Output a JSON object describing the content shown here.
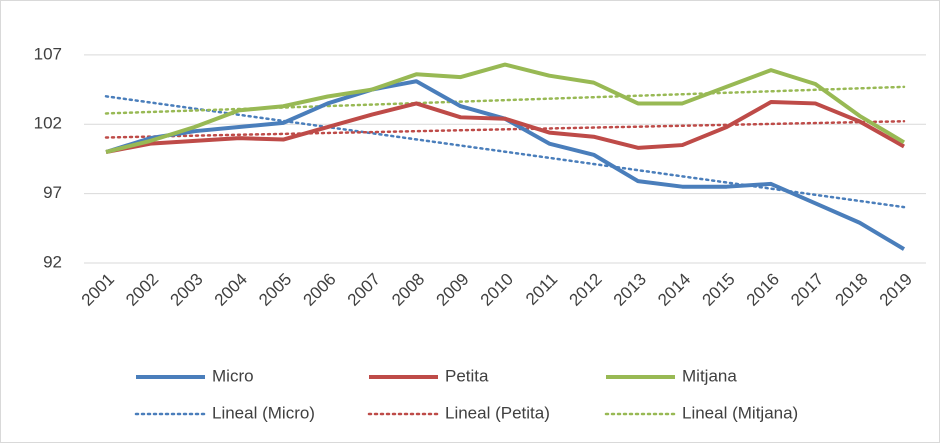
{
  "chart_data": {
    "type": "line",
    "x": [
      "2001",
      "2002",
      "2003",
      "2004",
      "2005",
      "2006",
      "2007",
      "2008",
      "2009",
      "2010",
      "2011",
      "2012",
      "2013",
      "2014",
      "2015",
      "2016",
      "2017",
      "2018",
      "2019"
    ],
    "series": [
      {
        "name": "Micro",
        "color": "#4a7ebb",
        "values": [
          100,
          101.0,
          101.5,
          101.8,
          102.1,
          103.5,
          104.5,
          105.1,
          103.3,
          102.4,
          100.6,
          99.8,
          97.9,
          97.5,
          97.5,
          97.7,
          96.3,
          94.9,
          93.0
        ]
      },
      {
        "name": "Petita",
        "color": "#be4b48",
        "values": [
          100,
          100.6,
          100.8,
          101.0,
          100.9,
          101.8,
          102.7,
          103.5,
          102.5,
          102.4,
          101.4,
          101.1,
          100.3,
          100.5,
          101.8,
          103.6,
          103.5,
          102.2,
          100.4
        ]
      },
      {
        "name": "Mitjana",
        "color": "#98b954",
        "values": [
          100,
          100.8,
          101.8,
          103.0,
          103.3,
          104.0,
          104.5,
          105.6,
          105.4,
          106.3,
          105.5,
          105.0,
          103.5,
          103.5,
          104.7,
          105.9,
          104.9,
          102.6,
          100.7
        ]
      }
    ],
    "trendlines": [
      {
        "name": "Lineal (Micro)",
        "color": "#4a7ebb"
      },
      {
        "name": "Lineal (Petita)",
        "color": "#be4b48"
      },
      {
        "name": "Lineal (Mitjana)",
        "color": "#98b954"
      }
    ],
    "ylim": [
      92,
      108
    ],
    "yticks": [
      92,
      97,
      102,
      107
    ],
    "grid": true
  }
}
